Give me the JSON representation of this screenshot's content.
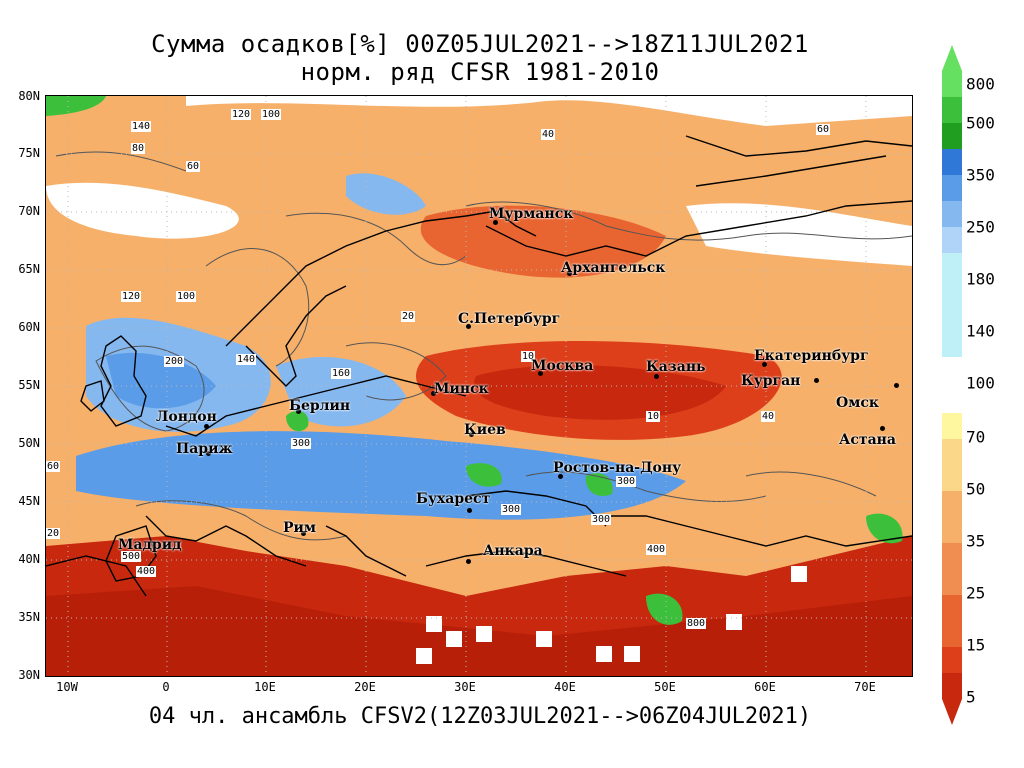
{
  "header": {
    "title_line1": "Сумма осадков[%] 00Z05JUL2021-->18Z11JUL2021",
    "title_line2": "норм. ряд CFSR 1981-2010"
  },
  "footer": "04 чл. ансамбль CFSV2(12Z03JUL2021-->06Z04JUL2021)",
  "axes": {
    "lat_labels": [
      "80N",
      "75N",
      "70N",
      "65N",
      "60N",
      "55N",
      "50N",
      "45N",
      "40N",
      "35N",
      "30N"
    ],
    "lon_labels": [
      "10W",
      "0",
      "10E",
      "20E",
      "30E",
      "40E",
      "50E",
      "60E",
      "70E"
    ]
  },
  "cities": [
    {
      "name": "Мурманск"
    },
    {
      "name": "Архангельск"
    },
    {
      "name": "С.Петербург"
    },
    {
      "name": "Москва"
    },
    {
      "name": "Казань"
    },
    {
      "name": "Екатеринбург"
    },
    {
      "name": "Курган"
    },
    {
      "name": "Омск"
    },
    {
      "name": "Минск"
    },
    {
      "name": "Берлин"
    },
    {
      "name": "Лондон"
    },
    {
      "name": "Париж"
    },
    {
      "name": "Киев"
    },
    {
      "name": "Астана"
    },
    {
      "name": "Ростов-на-Дону"
    },
    {
      "name": "Бухарест"
    },
    {
      "name": "Мадрид"
    },
    {
      "name": "Рим"
    },
    {
      "name": "Анкара"
    }
  ],
  "contour_labels": [
    "140",
    "120",
    "100",
    "80",
    "60",
    "40",
    "20",
    "10",
    "200",
    "300",
    "160",
    "400",
    "500",
    "800"
  ],
  "legend": {
    "upper_ticks": [
      "800",
      "500",
      "350",
      "250",
      "180",
      "140",
      "100"
    ],
    "lower_ticks": [
      "70",
      "50",
      "35",
      "25",
      "15",
      "5"
    ],
    "colors_upper": [
      "#66e060",
      "#3cc03c",
      "#1f9e1f",
      "#2f78d8",
      "#5a9ce8",
      "#86b8f0",
      "#b0d4f8",
      "#bff0f8"
    ],
    "colors_lower": [
      "#fff7a0",
      "#fbd78a",
      "#f6b06a",
      "#f08d50",
      "#e86532",
      "#dd3f1a",
      "#c8280e"
    ]
  }
}
